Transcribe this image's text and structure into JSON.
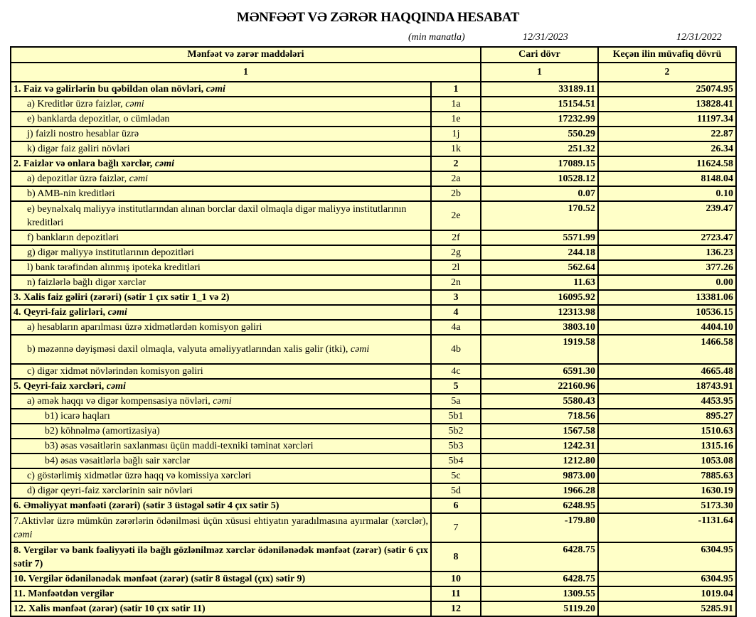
{
  "title": "MƏNFƏƏT VƏ ZƏRƏR HAQQINDA HESABAT",
  "unit": "(min manatla)",
  "date_current": "12/31/2023",
  "date_previous": "12/31/2022",
  "header": {
    "items": "Mənfəət və zərər maddələri",
    "current": "Cari dövr",
    "previous": "Keçən ilin müvafiq dövrü",
    "col_items_num": "1",
    "col_current_num": "1",
    "col_previous_num": "2"
  },
  "background_color": "#ffffc8",
  "rows": [
    {
      "label": "1. Faiz və gəlirlərin bu qəbildən olan növləri, ",
      "em": "cəmi",
      "code": "1",
      "current": "33189.11",
      "previous": "25074.95",
      "bold": true,
      "indent": 0
    },
    {
      "label": "a) Kreditlər üzrə faizlər, ",
      "em": "cəmi",
      "code": "1a",
      "current": "15154.51",
      "previous": "13828.41",
      "bold": false,
      "indent": 1
    },
    {
      "label": "e) banklarda depozitlər, o cümlədən",
      "em": "",
      "code": "1e",
      "current": "17232.99",
      "previous": "11197.34",
      "bold": false,
      "indent": 1
    },
    {
      "label": "j) faizli nostro hesablar üzrə",
      "em": "",
      "code": "1j",
      "current": "550.29",
      "previous": "22.87",
      "bold": false,
      "indent": 1
    },
    {
      "label": "k) digər faiz gəliri növləri",
      "em": "",
      "code": "1k",
      "current": "251.32",
      "previous": "26.34",
      "bold": false,
      "indent": 1
    },
    {
      "label": "2. Faizlər və onlara bağlı xərclər, ",
      "em": "cəmi",
      "code": "2",
      "current": "17089.15",
      "previous": "11624.58",
      "bold": true,
      "indent": 0
    },
    {
      "label": "a) depozitlər üzrə faizlər, ",
      "em": "cəmi",
      "code": "2a",
      "current": "10528.12",
      "previous": "8148.04",
      "bold": false,
      "indent": 1
    },
    {
      "label": "b) AMB-nin kreditləri",
      "em": "",
      "code": "2b",
      "current": "0.07",
      "previous": "0.10",
      "bold": false,
      "indent": 1
    },
    {
      "label": "e) beynəlxalq maliyyə institutlarından alınan borclar daxil olmaqla digər maliyyə institutlarının kreditləri",
      "em": "",
      "code": "2e",
      "current": "170.52",
      "previous": "239.47",
      "bold": false,
      "indent": 1,
      "tall": true
    },
    {
      "label": "f) bankların depozitləri",
      "em": "",
      "code": "2f",
      "current": "5571.99",
      "previous": "2723.47",
      "bold": false,
      "indent": 1
    },
    {
      "label": "g) digər maliyyə institutlarının depozitləri",
      "em": "",
      "code": "2g",
      "current": "244.18",
      "previous": "136.23",
      "bold": false,
      "indent": 1
    },
    {
      "label": "l) bank tərəfindən alınmış ipoteka kreditləri",
      "em": "",
      "code": "2l",
      "current": "562.64",
      "previous": "377.26",
      "bold": false,
      "indent": 1
    },
    {
      "label": "n) faizlərlə bağlı digər xərclər",
      "em": "",
      "code": "2n",
      "current": "11.63",
      "previous": "0.00",
      "bold": false,
      "indent": 1
    },
    {
      "label": "3. Xalis faiz gəliri (zərəri) (sətir 1 çıx sətir 1_1 və 2)",
      "em": "",
      "code": "3",
      "current": "16095.92",
      "previous": "13381.06",
      "bold": true,
      "indent": 0
    },
    {
      "label": "4. Qeyri-faiz gəlirləri, ",
      "em": "cəmi",
      "code": "4",
      "current": "12313.98",
      "previous": "10536.15",
      "bold": true,
      "indent": 0
    },
    {
      "label": "a) hesabların aparılması üzrə xidmətlərdən komisyon gəliri",
      "em": "",
      "code": "4a",
      "current": "3803.10",
      "previous": "4404.10",
      "bold": false,
      "indent": 1
    },
    {
      "label": "b) məzənnə dəyişməsi daxil olmaqla, valyuta əməliyyatlarından xalis gəlir (itki), ",
      "em": "cəmi",
      "code": "4b",
      "current": "1919.58",
      "previous": "1466.58",
      "bold": false,
      "indent": 1,
      "tall": true
    },
    {
      "label": "c) digər xidmət növlərindən komisyon gəliri",
      "em": "",
      "code": "4c",
      "current": "6591.30",
      "previous": "4665.48",
      "bold": false,
      "indent": 1
    },
    {
      "label": "5. Qeyri-faiz xərcləri, ",
      "em": "cəmi",
      "code": "5",
      "current": "22160.96",
      "previous": "18743.91",
      "bold": true,
      "indent": 0
    },
    {
      "label": "a) əmək haqqı və digər kompensasiya növləri, ",
      "em": "cəmi",
      "code": "5a",
      "current": "5580.43",
      "previous": "4453.95",
      "bold": false,
      "indent": 1
    },
    {
      "label": "b1) icarə haqları",
      "em": "",
      "code": "5b1",
      "current": "718.56",
      "previous": "895.27",
      "bold": false,
      "indent": 2
    },
    {
      "label": "b2) köhnəlmə (amortizasiya)",
      "em": "",
      "code": "5b2",
      "current": "1567.58",
      "previous": "1510.63",
      "bold": false,
      "indent": 2
    },
    {
      "label": "b3) əsas vəsaitlərin saxlanması üçün maddi-texniki təminat xərcləri",
      "em": "",
      "code": "5b3",
      "current": "1242.31",
      "previous": "1315.16",
      "bold": false,
      "indent": 2
    },
    {
      "label": "b4) əsas vəsaitlərlə bağlı sair xərclər",
      "em": "",
      "code": "5b4",
      "current": "1212.80",
      "previous": "1053.08",
      "bold": false,
      "indent": 2
    },
    {
      "label": "c) göstərlimiş xidmətlər üzrə haqq və komissiya xərcləri",
      "em": "",
      "code": "5c",
      "current": "9873.00",
      "previous": "7885.63",
      "bold": false,
      "indent": 1
    },
    {
      "label": "d) digər qeyri-faiz xərclərinin sair növləri",
      "em": "",
      "code": "5d",
      "current": "1966.28",
      "previous": "1630.19",
      "bold": false,
      "indent": 1
    },
    {
      "label": "6. Əməliyyat mənfəəti (zərəri) (sətir 3 üstəgəl sətir 4 çıx sətir 5)",
      "em": "",
      "code": "6",
      "current": "6248.95",
      "previous": "5173.30",
      "bold": true,
      "indent": 0
    },
    {
      "label": "7.Aktivlər üzrə mümkün zərərlərin ödənilməsi üçün xüsusi ehtiyatın yaradılmasına ayırmalar (xərclər), ",
      "em": "cəmi",
      "code": "7",
      "current": "-179.80",
      "previous": "-1131.64",
      "bold": false,
      "indent": 0,
      "tall": true
    },
    {
      "label": "8. Vergilər və bank fəaliyyəti ilə bağlı gözlənilməz xərclər ödənilənədək mənfəət (zərər) (sətir 6 çıx sətir 7)",
      "em": "",
      "code": "8",
      "current": "6428.75",
      "previous": "6304.95",
      "bold": true,
      "indent": 0,
      "tall": true
    },
    {
      "label": "10. Vergilər ödənilənədək mənfəət (zərər) (sətir 8 üstəgəl (çıx) sətir 9)",
      "em": "",
      "code": "10",
      "current": "6428.75",
      "previous": "6304.95",
      "bold": true,
      "indent": 0
    },
    {
      "label": "11. Mənfəətdən vergilər",
      "em": "",
      "code": "11",
      "current": "1309.55",
      "previous": "1019.04",
      "bold": true,
      "indent": 0
    },
    {
      "label": "12. Xalis mənfəət (zərər) (sətir 10 çıx sətir 11)",
      "em": "",
      "code": "12",
      "current": "5119.20",
      "previous": "5285.91",
      "bold": true,
      "indent": 0
    }
  ]
}
